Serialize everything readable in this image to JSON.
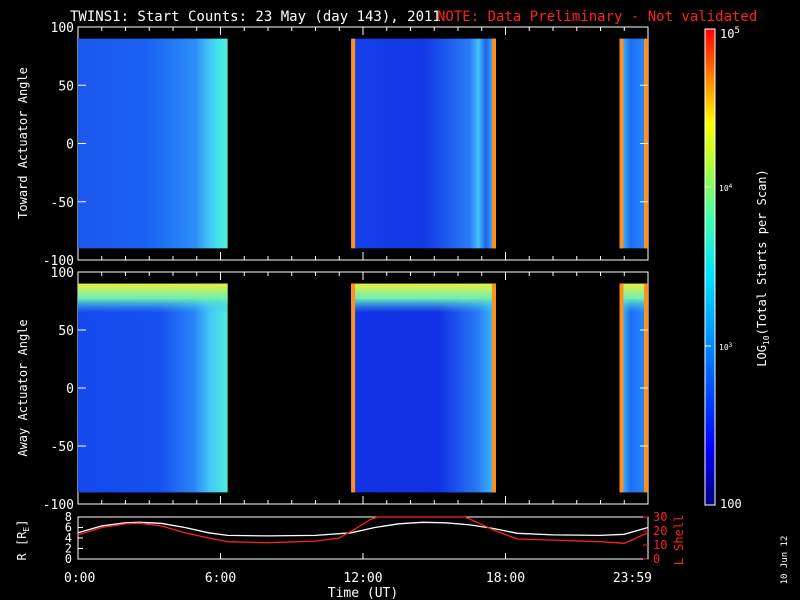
{
  "header": {
    "title": "TWINS1: Start Counts: 23 May (day 143), 2011",
    "note": "NOTE: Data Preliminary - Not validated"
  },
  "chart_data": [
    {
      "type": "heatmap",
      "ylabel": "Toward Actuator Angle",
      "ylim": [
        -100,
        100
      ],
      "yticks": [
        "100",
        "50",
        "0",
        "-50",
        "-100"
      ],
      "y_data_range": [
        -90,
        90
      ],
      "xlim_hours": [
        0,
        24
      ],
      "data_intervals_hours": [
        [
          0.0,
          6.3
        ],
        [
          11.5,
          17.6
        ],
        [
          22.8,
          24.0
        ]
      ],
      "colorscale_log10": true
    },
    {
      "type": "heatmap",
      "ylabel": "Away Actuator Angle",
      "ylim": [
        -100,
        100
      ],
      "yticks": [
        "100",
        "50",
        "0",
        "-50",
        "-100"
      ],
      "y_data_range": [
        -90,
        90
      ],
      "xlim_hours": [
        0,
        24
      ],
      "data_intervals_hours": [
        [
          0.0,
          6.3
        ],
        [
          11.5,
          17.6
        ],
        [
          22.8,
          24.0
        ]
      ],
      "colorscale_log10": true
    },
    {
      "type": "line",
      "xlabel": "Time (UT)",
      "xticks": [
        "0:00",
        "6:00",
        "12:00",
        "18:00",
        "23:59"
      ],
      "ylabel_left": "R [R",
      "ylabel_left_sub": "E",
      "ylabel_left_end": "]",
      "yticks_left": [
        "8",
        "6",
        "4",
        "2",
        "0"
      ],
      "ylim_left": [
        0,
        8
      ],
      "ylabel_right": "L Shell",
      "yticks_right": [
        "30",
        "20",
        "10",
        "0"
      ],
      "ylim_right": [
        0,
        30
      ],
      "series": [
        {
          "color": "#ffffff",
          "x": [
            0,
            1,
            2,
            2.6,
            3.5,
            4.5,
            5.5,
            6.3,
            8,
            10,
            11.5,
            12.5,
            13.5,
            14.5,
            15.5,
            16.5,
            17.5,
            18.5,
            20,
            22,
            23,
            24
          ],
          "y": [
            5.0,
            6.3,
            6.9,
            7.0,
            6.8,
            6.0,
            5.0,
            4.5,
            4.4,
            4.5,
            5.0,
            6.0,
            6.7,
            7.0,
            6.9,
            6.5,
            5.8,
            4.9,
            4.6,
            4.5,
            4.7,
            6.0
          ]
        },
        {
          "color": "#ff2020",
          "x": [
            0,
            1,
            2,
            2.6,
            3.5,
            4.5,
            5.5,
            6.3,
            8,
            10,
            11.0,
            11.7,
            12.3,
            12.6,
            16.3,
            16.8,
            17.5,
            18.5,
            20,
            22,
            23,
            24
          ],
          "y": [
            4.6,
            6.0,
            6.7,
            6.8,
            6.3,
            5.0,
            4.0,
            3.3,
            3.1,
            3.4,
            4.0,
            5.8,
            7.5,
            8.0,
            8.0,
            7.0,
            5.5,
            3.8,
            3.6,
            3.3,
            3.0,
            5.0
          ]
        }
      ]
    }
  ],
  "colorbar": {
    "label_prefix": "LOG",
    "label_sub": "10",
    "label_suffix": "(Total Starts per Scan)",
    "top_base": "10",
    "top_exp": "5",
    "mid_base": "10",
    "mid_exp": "4",
    "low_base": "10",
    "low_exp": "3",
    "bottom": "100",
    "range": [
      100,
      100000
    ]
  },
  "footer_date": "10 Jun 12"
}
